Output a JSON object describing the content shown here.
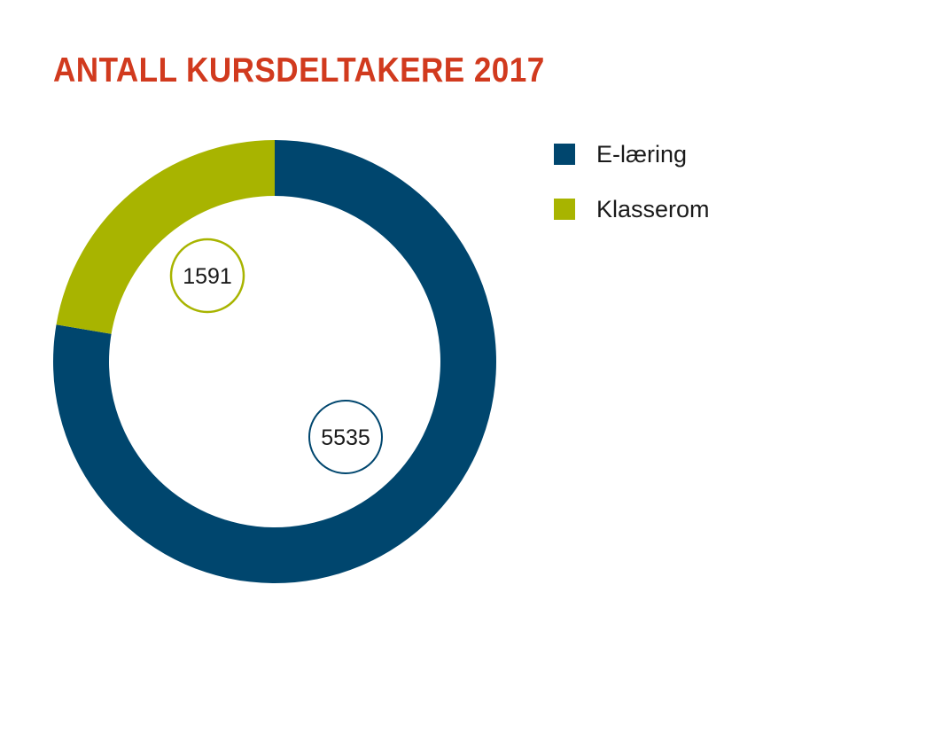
{
  "chart_data": {
    "type": "pie",
    "title": "ANTALL KURSDELTAKERE 2017",
    "slices": [
      {
        "name": "E-læring",
        "value": 5535,
        "label": "5535",
        "color": "#00466e"
      },
      {
        "name": "Klasserom",
        "value": 1591,
        "label": "1591",
        "color": "#a8b400"
      }
    ],
    "legend_position": "right",
    "donut": true
  },
  "colors": {
    "title": "#d13a1e"
  }
}
